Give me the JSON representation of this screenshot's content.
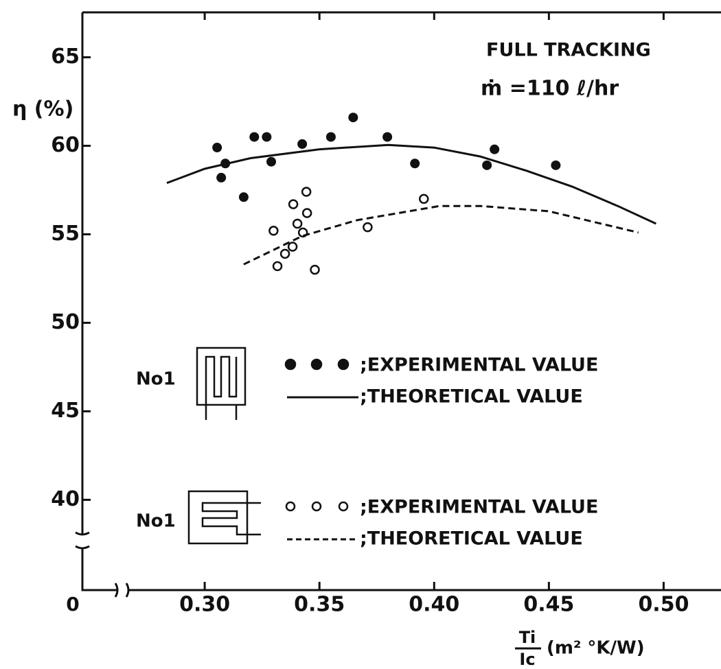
{
  "chart_data": {
    "type": "scatter",
    "title": "FULL TRACKING",
    "subtitle": "ṁ =110 ℓ/hr",
    "ylabel": "η (%)",
    "xlabel": {
      "numerator": "Ti",
      "denominator": "Ic",
      "unit": "(m² °K/W)"
    },
    "origin_label": "0",
    "xlim": [
      0.2467,
      0.525
    ],
    "ylim": [
      34.9,
      67.5
    ],
    "xticks": [
      {
        "value": 0.3,
        "label": "0.30"
      },
      0.35,
      {
        "value": 0.4,
        "label": "0.40"
      },
      0.45,
      {
        "value": 0.5,
        "label": "0.50"
      }
    ],
    "yticks": [
      40,
      45,
      50,
      55,
      60,
      65
    ],
    "color": "#111111",
    "groups": [
      {
        "label": "No1",
        "orientation": "vertical"
      },
      {
        "label": "No1",
        "orientation": "horizontal"
      }
    ],
    "series": [
      {
        "name": ";EXPERIMENTAL VALUE",
        "group": 0,
        "mark": "filled",
        "x": [
          0.3054,
          0.309,
          0.3072,
          0.317,
          0.3216,
          0.327,
          0.329,
          0.3425,
          0.355,
          0.3647,
          0.3796,
          0.3916,
          0.423,
          0.4263,
          0.453
        ],
        "values": [
          59.9,
          59.0,
          58.2,
          57.1,
          60.5,
          60.5,
          59.1,
          60.1,
          60.5,
          61.6,
          60.5,
          59.0,
          58.9,
          59.8,
          58.9
        ]
      },
      {
        "name": ";THEORETICAL VALUE",
        "group": 0,
        "mark": "solid",
        "x": [
          0.2835,
          0.3,
          0.32,
          0.35,
          0.38,
          0.4,
          0.42,
          0.44,
          0.46,
          0.48,
          0.4967
        ],
        "values": [
          57.9,
          58.7,
          59.3,
          59.8,
          60.05,
          59.9,
          59.4,
          58.6,
          57.7,
          56.6,
          55.6
        ]
      },
      {
        "name": ";EXPERIMENTAL VALUE",
        "group": 1,
        "mark": "open",
        "x": [
          0.33,
          0.3317,
          0.335,
          0.3383,
          0.3386,
          0.3404,
          0.3428,
          0.3446,
          0.3443,
          0.348,
          0.371,
          0.3955
        ],
        "values": [
          55.2,
          53.2,
          53.9,
          54.3,
          56.7,
          55.6,
          55.1,
          56.2,
          57.4,
          53.0,
          55.4,
          57.0
        ]
      },
      {
        "name": ";THEORETICAL VALUE",
        "group": 1,
        "mark": "dashed",
        "x": [
          0.317,
          0.3425,
          0.3665,
          0.4024,
          0.42,
          0.45,
          0.489
        ],
        "values": [
          53.3,
          54.9,
          55.8,
          56.6,
          56.6,
          56.3,
          55.1
        ]
      }
    ]
  }
}
